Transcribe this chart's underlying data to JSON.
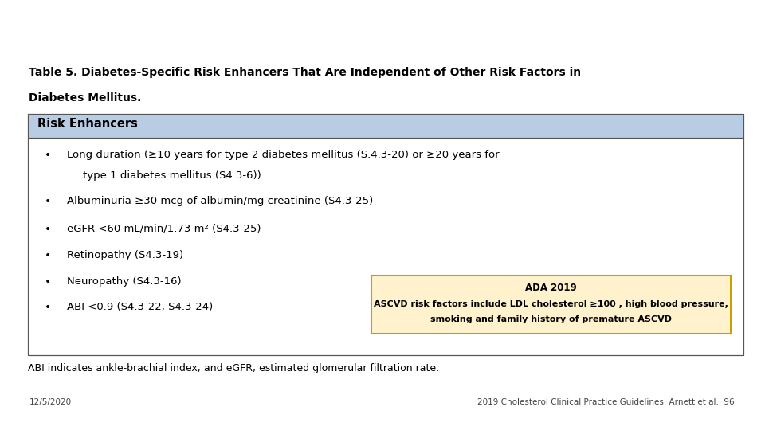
{
  "title_line1": "Table 5. Diabetes-Specific Risk Enhancers That Are Independent of Other Risk Factors in",
  "title_line2": "Diabetes Mellitus.",
  "header_text": "Risk Enhancers",
  "header_bg": "#b8cce4",
  "table_border": "#555555",
  "bullet_item0_line1": "Long duration (≥10 years for type 2 diabetes mellitus (S.4.3-20) or ≥20 years for",
  "bullet_item0_line2": "type 1 diabetes mellitus (S4.3-6))",
  "bullet_items": [
    "Albuminuria ≥30 mcg of albumin/mg creatinine (S4.3-25)",
    "eGFR <60 mL/min/1.73 m² (S4.3-25)",
    "Retinopathy (S4.3-19)",
    "Neuropathy (S4.3-16)",
    "ABI <0.9 (S4.3-22, S4.3-24)"
  ],
  "footnote": "ABI indicates ankle-brachial index; and eGFR, estimated glomerular filtration rate.",
  "date_text": "12/5/2020",
  "citation_text": "2019 Cholesterol Clinical Practice Guidelines. Arnett et al.",
  "page_num": "96",
  "inset_title": "ADA 2019",
  "inset_line1": "ASCVD risk factors include LDL cholesterol ≥100 , high blood pressure,",
  "inset_line2": "smoking and family history of premature ASCVD",
  "inset_bg": "#fff2cc",
  "inset_border": "#c8a000",
  "bg_color": "#ffffff"
}
